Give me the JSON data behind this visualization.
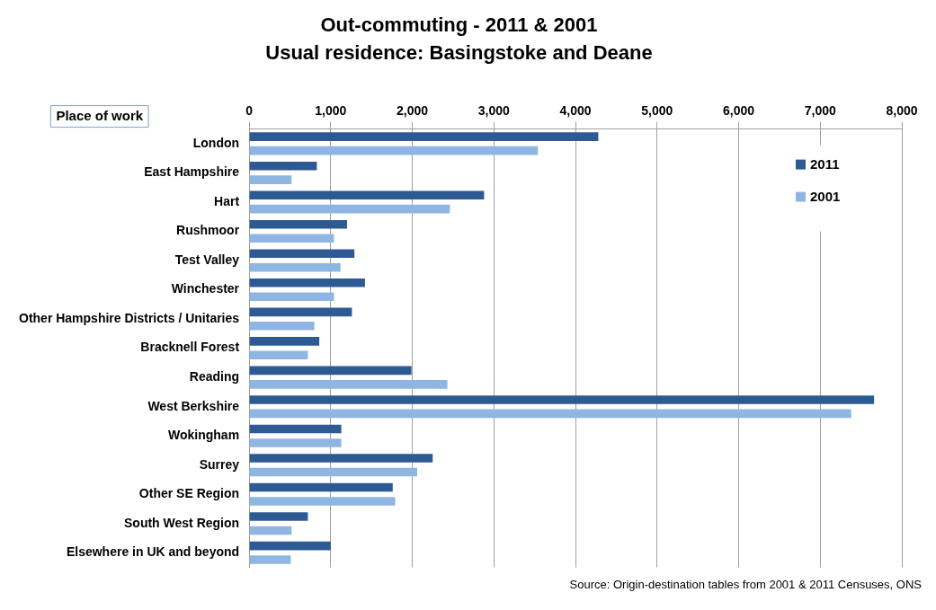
{
  "chart_data": {
    "type": "bar",
    "orientation": "horizontal",
    "title": "Out-commuting - 2011 & 2001",
    "subtitle": "Usual residence: Basingstoke and Deane",
    "ylabel": "Place of work",
    "categories": [
      "London",
      "East Hampshire",
      "Hart",
      "Rushmoor",
      "Test Valley",
      "Winchester",
      "Other Hampshire Districts / Unitaries",
      "Bracknell Forest",
      "Reading",
      "West Berkshire",
      "Wokingham",
      "Surrey",
      "Other SE Region",
      "South West Region",
      "Elsewhere in UK and beyond"
    ],
    "series": [
      {
        "name": "2011",
        "color": "#2e5a93",
        "values": [
          4280,
          830,
          2880,
          1200,
          1290,
          1420,
          1260,
          860,
          1990,
          7660,
          1130,
          2250,
          1760,
          720,
          1000
        ]
      },
      {
        "name": "2001",
        "color": "#8fb6e3",
        "values": [
          3540,
          520,
          2460,
          1040,
          1120,
          1040,
          800,
          720,
          2430,
          7380,
          1130,
          2060,
          1790,
          520,
          510
        ]
      }
    ],
    "xlim": [
      0,
      8000
    ],
    "xticks": [
      {
        "value": 0,
        "label": "0"
      },
      {
        "value": 1000,
        "label": "1,000"
      },
      {
        "value": 2000,
        "label": "2,000"
      },
      {
        "value": 3000,
        "label": "3,000"
      },
      {
        "value": 4000,
        "label": "4,000"
      },
      {
        "value": 5000,
        "label": "5,000"
      },
      {
        "value": 6000,
        "label": "6,000"
      },
      {
        "value": 7000,
        "label": "7,000"
      },
      {
        "value": 8000,
        "label": "8,000"
      }
    ],
    "grid": "x",
    "legend": "top right",
    "annotations": [
      "Source: Origin-destination tables from 2001 & 2011 Censuses, ONS"
    ]
  }
}
